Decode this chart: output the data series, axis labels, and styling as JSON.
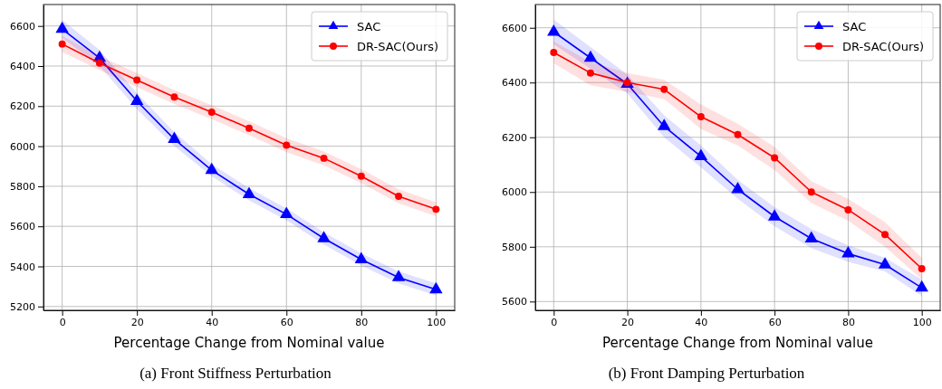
{
  "chart_data": [
    {
      "type": "line",
      "xlabel": "Percentage Change from Nominal value",
      "annotations": [
        "(a) Front Stiffness Perturbation"
      ],
      "x": [
        0,
        10,
        20,
        30,
        40,
        50,
        60,
        70,
        80,
        90,
        100
      ],
      "xlim": [
        -5,
        105
      ],
      "xticks": [
        0,
        20,
        40,
        60,
        80,
        100
      ],
      "ylim": [
        5181,
        6707
      ],
      "yticks": [
        5200,
        5400,
        5600,
        5800,
        6000,
        6200,
        6400,
        6600
      ],
      "grid": true,
      "legend": "top right",
      "line_style": "solid",
      "series": [
        {
          "name": "SAC",
          "color": "#0000ff",
          "marker": "triangle",
          "values": [
            6585,
            6440,
            6225,
            6035,
            5880,
            5760,
            5660,
            5540,
            5435,
            5345,
            5285
          ],
          "lower": [
            6540,
            6400,
            6185,
            6000,
            5850,
            5730,
            5630,
            5510,
            5405,
            5315,
            5255
          ],
          "upper": [
            6630,
            6480,
            6265,
            6070,
            5910,
            5790,
            5690,
            5570,
            5465,
            5375,
            5315
          ]
        },
        {
          "name": "DR-SAC(Ours)",
          "color": "#ff0000",
          "marker": "circle",
          "values": [
            6510,
            6415,
            6330,
            6245,
            6170,
            6090,
            6005,
            5940,
            5850,
            5750,
            5685
          ],
          "lower": [
            6470,
            6380,
            6295,
            6210,
            6135,
            6055,
            5970,
            5905,
            5815,
            5715,
            5650
          ],
          "upper": [
            6550,
            6450,
            6365,
            6280,
            6205,
            6125,
            6040,
            5975,
            5885,
            5785,
            5720
          ]
        }
      ]
    },
    {
      "type": "line",
      "xlabel": "Percentage Change from Nominal value",
      "annotations": [
        "(b) Front Damping Perturbation"
      ],
      "x": [
        0,
        10,
        20,
        30,
        40,
        50,
        60,
        70,
        80,
        90,
        100
      ],
      "xlim": [
        -5,
        105
      ],
      "xticks": [
        0,
        20,
        40,
        60,
        80,
        100
      ],
      "ylim": [
        5568,
        6685
      ],
      "yticks": [
        5600,
        5800,
        6000,
        6200,
        6400,
        6600
      ],
      "grid": true,
      "legend": "top right",
      "line_style": "solid",
      "series": [
        {
          "name": "SAC",
          "color": "#0000ff",
          "marker": "triangle",
          "values": [
            6585,
            6490,
            6395,
            6240,
            6130,
            6010,
            5910,
            5830,
            5775,
            5735,
            5650
          ],
          "lower": [
            6540,
            6450,
            6360,
            6200,
            6090,
            5975,
            5875,
            5795,
            5745,
            5710,
            5620
          ],
          "upper": [
            6630,
            6530,
            6430,
            6280,
            6170,
            6045,
            5945,
            5865,
            5805,
            5760,
            5680
          ]
        },
        {
          "name": "DR-SAC(Ours)",
          "color": "#ff0000",
          "marker": "circle",
          "values": [
            6510,
            6435,
            6400,
            6375,
            6275,
            6210,
            6125,
            6000,
            5935,
            5845,
            5720
          ],
          "lower": [
            6470,
            6390,
            6365,
            6340,
            6230,
            6170,
            6080,
            5960,
            5895,
            5800,
            5680
          ],
          "upper": [
            6550,
            6475,
            6435,
            6410,
            6320,
            6250,
            6165,
            6040,
            5975,
            5890,
            5760
          ]
        }
      ]
    }
  ]
}
